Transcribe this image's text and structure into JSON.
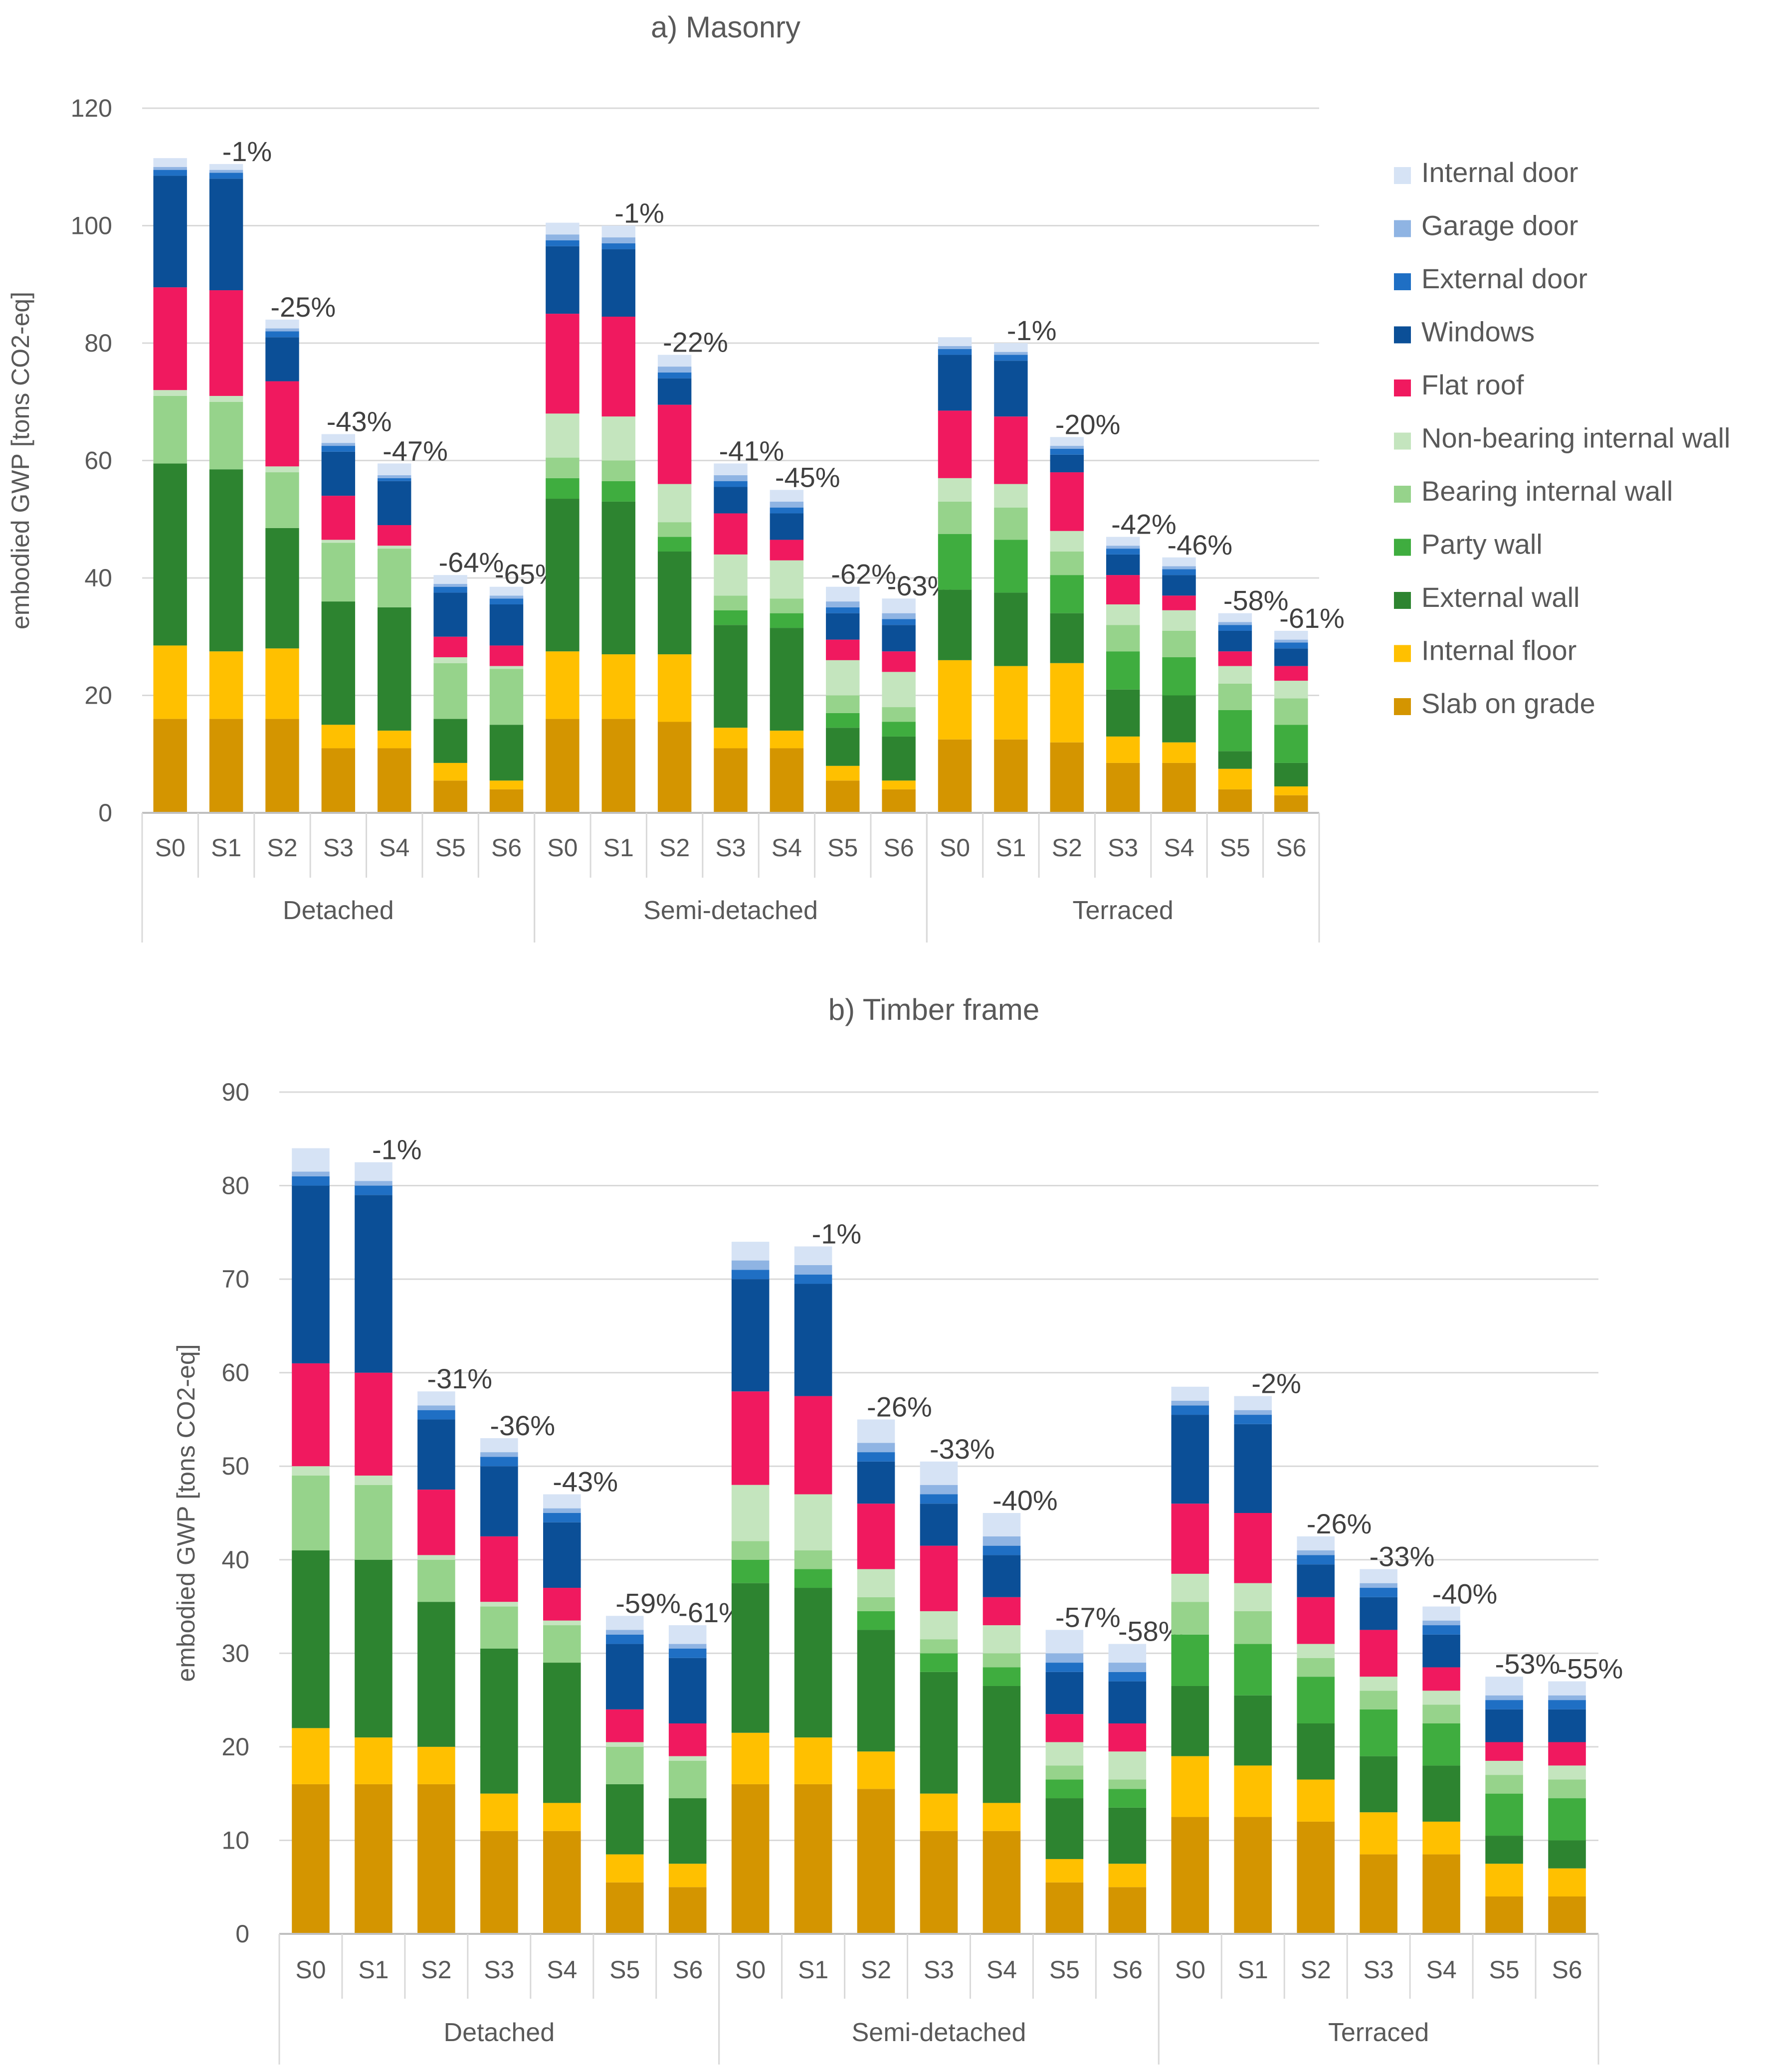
{
  "legend": [
    {
      "name": "Internal door",
      "color": "#d6e3f5"
    },
    {
      "name": "Garage door",
      "color": "#8fb4e3"
    },
    {
      "name": "External door",
      "color": "#1f6fc4"
    },
    {
      "name": "Windows",
      "color": "#0b4f97"
    },
    {
      "name": "Flat roof",
      "color": "#f0195f"
    },
    {
      "name": "Non-bearing internal wall",
      "color": "#c4e5be"
    },
    {
      "name": "Bearing internal wall",
      "color": "#96d38b"
    },
    {
      "name": "Party wall",
      "color": "#3fad3f"
    },
    {
      "name": "External wall",
      "color": "#2d8430"
    },
    {
      "name": "Internal floor",
      "color": "#ffc000"
    },
    {
      "name": "Slab on grade",
      "color": "#d49500"
    }
  ],
  "chart_data": [
    {
      "type": "bar",
      "stacked": true,
      "title": "a) Masonry",
      "ylabel": "embodied GWP [tons CO2-eq]",
      "ylim": [
        0,
        120
      ],
      "yticks": [
        "0",
        "20",
        "40",
        "60",
        "80",
        "100",
        "120"
      ],
      "groups": [
        "Detached",
        "Semi-detached",
        "Terraced"
      ],
      "categories": [
        "S0",
        "S1",
        "S2",
        "S3",
        "S4",
        "S5",
        "S6"
      ],
      "series_order": [
        "Slab on grade",
        "Internal floor",
        "External wall",
        "Party wall",
        "Bearing internal wall",
        "Non-bearing internal wall",
        "Flat roof",
        "Windows",
        "External door",
        "Garage door",
        "Internal door"
      ],
      "data": {
        "Detached": [
          [
            16,
            12.5,
            31,
            0,
            11.5,
            1,
            17.5,
            19,
            1,
            0.5,
            1.5
          ],
          [
            16,
            11.5,
            31,
            0,
            11.5,
            1,
            18,
            19,
            1,
            0.5,
            1
          ],
          [
            16,
            12,
            20.5,
            0,
            9.5,
            1,
            14.5,
            7.5,
            1,
            0.5,
            1.5
          ],
          [
            11,
            4,
            21,
            0,
            10,
            0.5,
            7.5,
            7.5,
            1,
            0.5,
            1.5
          ],
          [
            11,
            3,
            21,
            0,
            10,
            0.5,
            3.5,
            7.5,
            0.5,
            0.5,
            2
          ],
          [
            5.5,
            3,
            7.5,
            0,
            9.5,
            1,
            3.5,
            7.5,
            1,
            0.5,
            1.5
          ],
          [
            4,
            1.5,
            9.5,
            0,
            9.5,
            0.5,
            3.5,
            7,
            1,
            0.5,
            1.5
          ]
        ],
        "Semi-detached": [
          [
            16,
            11.5,
            26,
            3.5,
            3.5,
            7.5,
            17,
            11.5,
            1,
            1,
            2
          ],
          [
            16,
            11,
            26,
            3.5,
            3.5,
            7.5,
            17,
            11.5,
            1,
            1,
            2
          ],
          [
            15.5,
            11.5,
            17.5,
            2.5,
            2.5,
            6.5,
            13.5,
            4.5,
            1,
            1,
            2
          ],
          [
            11,
            3.5,
            17.5,
            2.5,
            2.5,
            7,
            7,
            4.5,
            1,
            1,
            2
          ],
          [
            11,
            3,
            17.5,
            2.5,
            2.5,
            6.5,
            3.5,
            4.5,
            1,
            1,
            2
          ],
          [
            5.5,
            2.5,
            6.5,
            2.5,
            3,
            6,
            3.5,
            4.5,
            1,
            1,
            2.5
          ],
          [
            4,
            1.5,
            7.5,
            2.5,
            2.5,
            6,
            3.5,
            4.5,
            1,
            1,
            2.5
          ]
        ],
        "Terraced": [
          [
            12.5,
            13.5,
            12,
            9.5,
            5.5,
            4,
            11.5,
            9.5,
            1,
            0.5,
            1.5
          ],
          [
            12.5,
            12.5,
            12.5,
            9,
            5.5,
            4,
            11.5,
            9.5,
            1,
            0.5,
            1.5
          ],
          [
            12,
            13.5,
            8.5,
            6.5,
            4,
            3.5,
            10,
            3,
            1,
            0.5,
            1.5
          ],
          [
            8.5,
            4.5,
            8,
            6.5,
            4.5,
            3.5,
            5,
            3.5,
            1,
            0.5,
            1.5
          ],
          [
            8.5,
            3.5,
            8,
            6.5,
            4.5,
            3.5,
            2.5,
            3.5,
            1,
            0.5,
            1.5
          ],
          [
            4,
            3.5,
            3,
            7,
            4.5,
            3,
            2.5,
            3.5,
            1,
            0.5,
            1.5
          ],
          [
            3,
            1.5,
            4,
            6.5,
            4.5,
            3,
            2.5,
            3,
            1,
            0.5,
            1.5
          ]
        ]
      },
      "labels": {
        "Detached": [
          "",
          "-1%",
          "-25%",
          "-43%",
          "-47%",
          "-64%",
          "-65%"
        ],
        "Semi-detached": [
          "",
          "-1%",
          "-22%",
          "-41%",
          "-45%",
          "-62%",
          "-63%"
        ],
        "Terraced": [
          "",
          "-1%",
          "-20%",
          "-42%",
          "-46%",
          "-58%",
          "-61%"
        ]
      }
    },
    {
      "type": "bar",
      "stacked": true,
      "title": "b) Timber frame",
      "ylabel": "embodied GWP [tons CO2-eq]",
      "ylim": [
        0,
        90
      ],
      "yticks": [
        "0",
        "10",
        "20",
        "30",
        "40",
        "50",
        "60",
        "70",
        "80",
        "90"
      ],
      "groups": [
        "Detached",
        "Semi-detached",
        "Terraced"
      ],
      "categories": [
        "S0",
        "S1",
        "S2",
        "S3",
        "S4",
        "S5",
        "S6"
      ],
      "series_order": [
        "Slab on grade",
        "Internal floor",
        "External wall",
        "Party wall",
        "Bearing internal wall",
        "Non-bearing internal wall",
        "Flat roof",
        "Windows",
        "External door",
        "Garage door",
        "Internal door"
      ],
      "data": {
        "Detached": [
          [
            16,
            6,
            19,
            0,
            8,
            1,
            11,
            19,
            1,
            0.5,
            2.5
          ],
          [
            16,
            5,
            19,
            0,
            8,
            1,
            11,
            19,
            1,
            0.5,
            2
          ],
          [
            16,
            4,
            15.5,
            0,
            4.5,
            0.5,
            7,
            7.5,
            1,
            0.5,
            1.5
          ],
          [
            11,
            4,
            15.5,
            0,
            4.5,
            0.5,
            7,
            7.5,
            1,
            0.5,
            1.5
          ],
          [
            11,
            3,
            15,
            0,
            4,
            0.5,
            3.5,
            7,
            1,
            0.5,
            1.5
          ],
          [
            5.5,
            3,
            7.5,
            0,
            4,
            0.5,
            3.5,
            7,
            1,
            0.5,
            1.5
          ],
          [
            5,
            2.5,
            7,
            0,
            4,
            0.5,
            3.5,
            7,
            1,
            0.5,
            2
          ]
        ],
        "Semi-detached": [
          [
            16,
            5.5,
            16,
            2.5,
            2,
            6,
            10,
            12,
            1,
            1,
            2
          ],
          [
            16,
            5,
            16,
            2,
            2,
            6,
            10.5,
            12,
            1,
            1,
            2
          ],
          [
            15.5,
            4,
            13,
            2,
            1.5,
            3,
            7,
            4.5,
            1,
            1,
            2.5
          ],
          [
            11,
            4,
            13,
            2,
            1.5,
            3,
            7,
            4.5,
            1,
            1,
            2.5
          ],
          [
            11,
            3,
            12.5,
            2,
            1.5,
            3,
            3,
            4.5,
            1,
            1,
            2.5
          ],
          [
            5.5,
            2.5,
            6.5,
            2,
            1.5,
            2.5,
            3,
            4.5,
            1,
            1,
            2.5
          ],
          [
            5,
            2.5,
            6,
            2,
            1,
            3,
            3,
            4.5,
            1,
            1,
            2
          ]
        ],
        "Terraced": [
          [
            12.5,
            6.5,
            7.5,
            5.5,
            3.5,
            3,
            7.5,
            9.5,
            1,
            0.5,
            1.5
          ],
          [
            12.5,
            5.5,
            7.5,
            5.5,
            3.5,
            3,
            7.5,
            9.5,
            1,
            0.5,
            1.5
          ],
          [
            12,
            4.5,
            6,
            5,
            2,
            1.5,
            5,
            3.5,
            1,
            0.5,
            1.5
          ],
          [
            8.5,
            4.5,
            6,
            5,
            2,
            1.5,
            5,
            3.5,
            1,
            0.5,
            1.5
          ],
          [
            8.5,
            3.5,
            6,
            4.5,
            2,
            1.5,
            2.5,
            3.5,
            1,
            0.5,
            1.5
          ],
          [
            4,
            3.5,
            3,
            4.5,
            2,
            1.5,
            2,
            3.5,
            1,
            0.5,
            2
          ],
          [
            4,
            3,
            3,
            4.5,
            2,
            1.5,
            2.5,
            3.5,
            1,
            0.5,
            1.5
          ]
        ]
      },
      "labels": {
        "Detached": [
          "",
          "-1%",
          "-31%",
          "-36%",
          "-43%",
          "-59%",
          "-61%"
        ],
        "Semi-detached": [
          "",
          "-1%",
          "-26%",
          "-33%",
          "-40%",
          "-57%",
          "-58%"
        ],
        "Terraced": [
          "",
          "-2%",
          "-26%",
          "-33%",
          "-40%",
          "-53%",
          "-55%"
        ]
      }
    }
  ]
}
